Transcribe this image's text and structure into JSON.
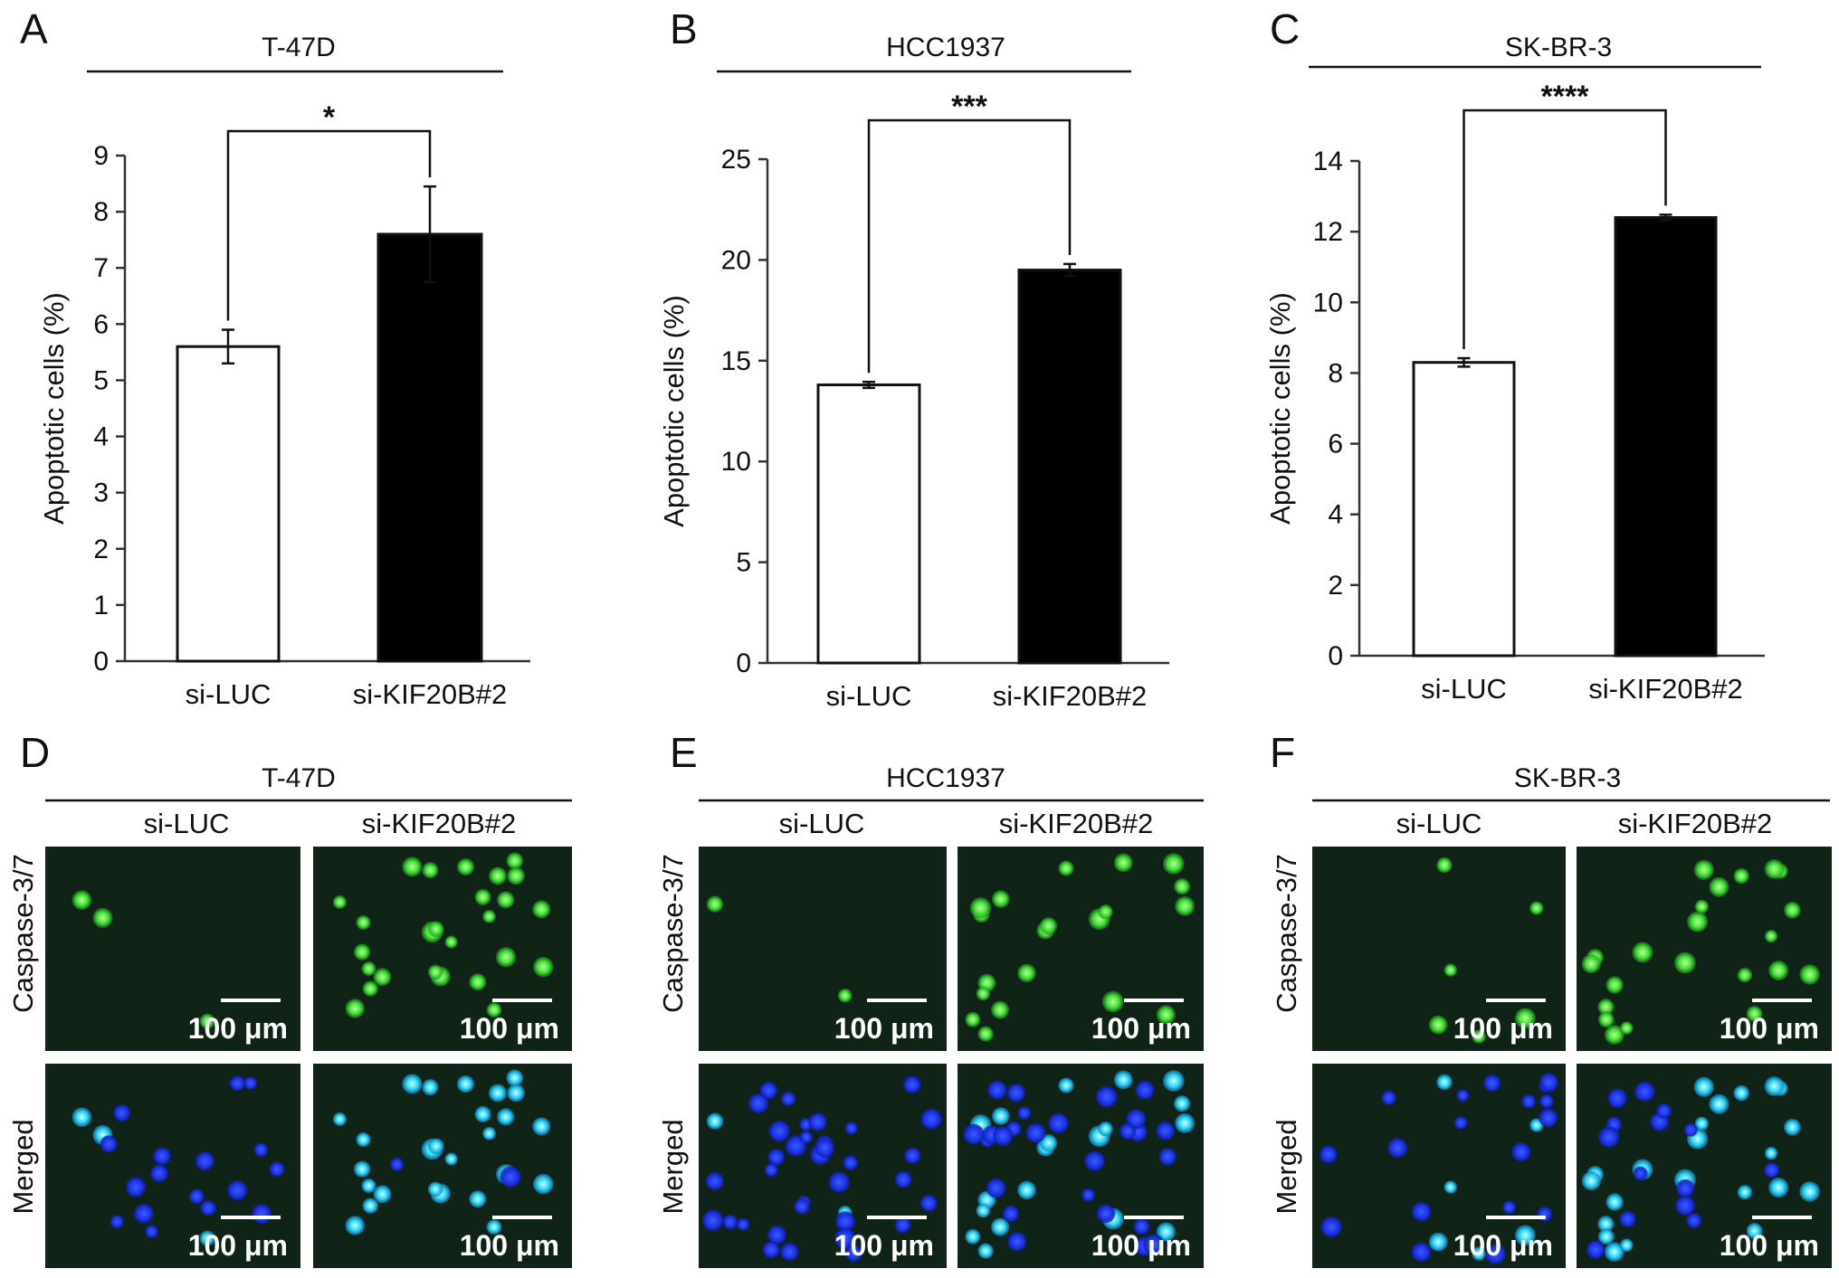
{
  "panels_top": [
    {
      "letter": "A",
      "cell_line": "T-47D"
    },
    {
      "letter": "B",
      "cell_line": "HCC1937"
    },
    {
      "letter": "C",
      "cell_line": "SK-BR-3"
    }
  ],
  "chart_data": [
    {
      "type": "bar",
      "title": "T-47D",
      "ylabel": "Apoptotic cells (%)",
      "categories": [
        "si-LUC",
        "si-KIF20B#2"
      ],
      "values": [
        5.6,
        7.6
      ],
      "errors": [
        0.3,
        0.85
      ],
      "colors": [
        "#ffffff",
        "#000000"
      ],
      "ylim": [
        0,
        9
      ],
      "yticks": [
        "0",
        "1",
        "2",
        "3",
        "4",
        "5",
        "6",
        "7",
        "8",
        "9"
      ],
      "significance": "*"
    },
    {
      "type": "bar",
      "title": "HCC1937",
      "ylabel": "Apoptotic cells (%)",
      "categories": [
        "si-LUC",
        "si-KIF20B#2"
      ],
      "values": [
        13.8,
        19.5
      ],
      "errors": [
        0.15,
        0.3
      ],
      "colors": [
        "#ffffff",
        "#000000"
      ],
      "ylim": [
        0,
        25
      ],
      "yticks": [
        "0",
        "5",
        "10",
        "15",
        "20",
        "25"
      ],
      "significance": "***"
    },
    {
      "type": "bar",
      "title": "SK-BR-3",
      "ylabel": "Apoptotic cells (%)",
      "categories": [
        "si-LUC",
        "si-KIF20B#2"
      ],
      "values": [
        8.3,
        12.4
      ],
      "errors": [
        0.12,
        0.08
      ],
      "colors": [
        "#ffffff",
        "#000000"
      ],
      "ylim": [
        0,
        14
      ],
      "yticks": [
        "0",
        "2",
        "4",
        "6",
        "8",
        "10",
        "12",
        "14"
      ],
      "significance": "****"
    }
  ],
  "panels_bottom": [
    {
      "letter": "D",
      "cell_line": "T-47D"
    },
    {
      "letter": "E",
      "cell_line": "HCC1937"
    },
    {
      "letter": "F",
      "cell_line": "SK-BR-3"
    }
  ],
  "micro": {
    "columns": [
      "si-LUC",
      "si-KIF20B#2"
    ],
    "rows": [
      "Caspase-3/7",
      "Merged"
    ],
    "scale_bar": "100 μm"
  }
}
